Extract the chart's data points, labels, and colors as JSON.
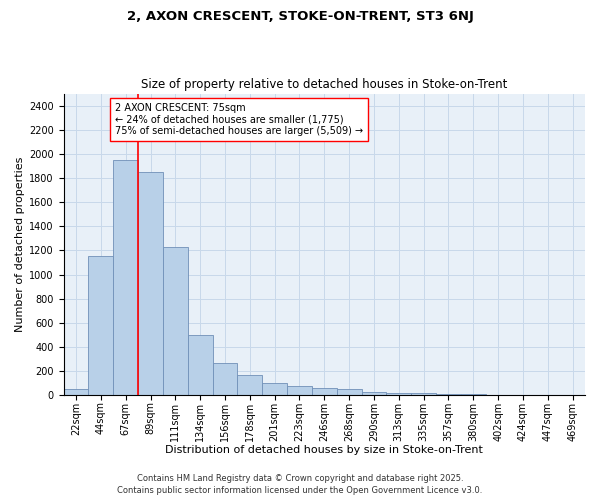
{
  "title1": "2, AXON CRESCENT, STOKE-ON-TRENT, ST3 6NJ",
  "title2": "Size of property relative to detached houses in Stoke-on-Trent",
  "xlabel": "Distribution of detached houses by size in Stoke-on-Trent",
  "ylabel": "Number of detached properties",
  "categories": [
    "22sqm",
    "44sqm",
    "67sqm",
    "89sqm",
    "111sqm",
    "134sqm",
    "156sqm",
    "178sqm",
    "201sqm",
    "223sqm",
    "246sqm",
    "268sqm",
    "290sqm",
    "313sqm",
    "335sqm",
    "357sqm",
    "380sqm",
    "402sqm",
    "424sqm",
    "447sqm",
    "469sqm"
  ],
  "values": [
    50,
    1150,
    1950,
    1850,
    1225,
    500,
    270,
    170,
    100,
    75,
    60,
    50,
    30,
    20,
    20,
    10,
    10,
    5,
    0,
    0,
    0
  ],
  "bar_color": "#b8d0e8",
  "bar_edge_color": "#7090b8",
  "vline_color": "red",
  "vline_x": 2.5,
  "annotation_text": "2 AXON CRESCENT: 75sqm\n← 24% of detached houses are smaller (1,775)\n75% of semi-detached houses are larger (5,509) →",
  "annotation_box_color": "white",
  "annotation_box_edge": "red",
  "ylim": [
    0,
    2500
  ],
  "yticks": [
    0,
    200,
    400,
    600,
    800,
    1000,
    1200,
    1400,
    1600,
    1800,
    2000,
    2200,
    2400
  ],
  "grid_color": "#c8d8ea",
  "background_color": "#e8f0f8",
  "footer1": "Contains HM Land Registry data © Crown copyright and database right 2025.",
  "footer2": "Contains public sector information licensed under the Open Government Licence v3.0.",
  "title1_fontsize": 9.5,
  "title2_fontsize": 8.5,
  "xlabel_fontsize": 8,
  "ylabel_fontsize": 8,
  "tick_fontsize": 7,
  "annotation_fontsize": 7,
  "footer_fontsize": 6
}
